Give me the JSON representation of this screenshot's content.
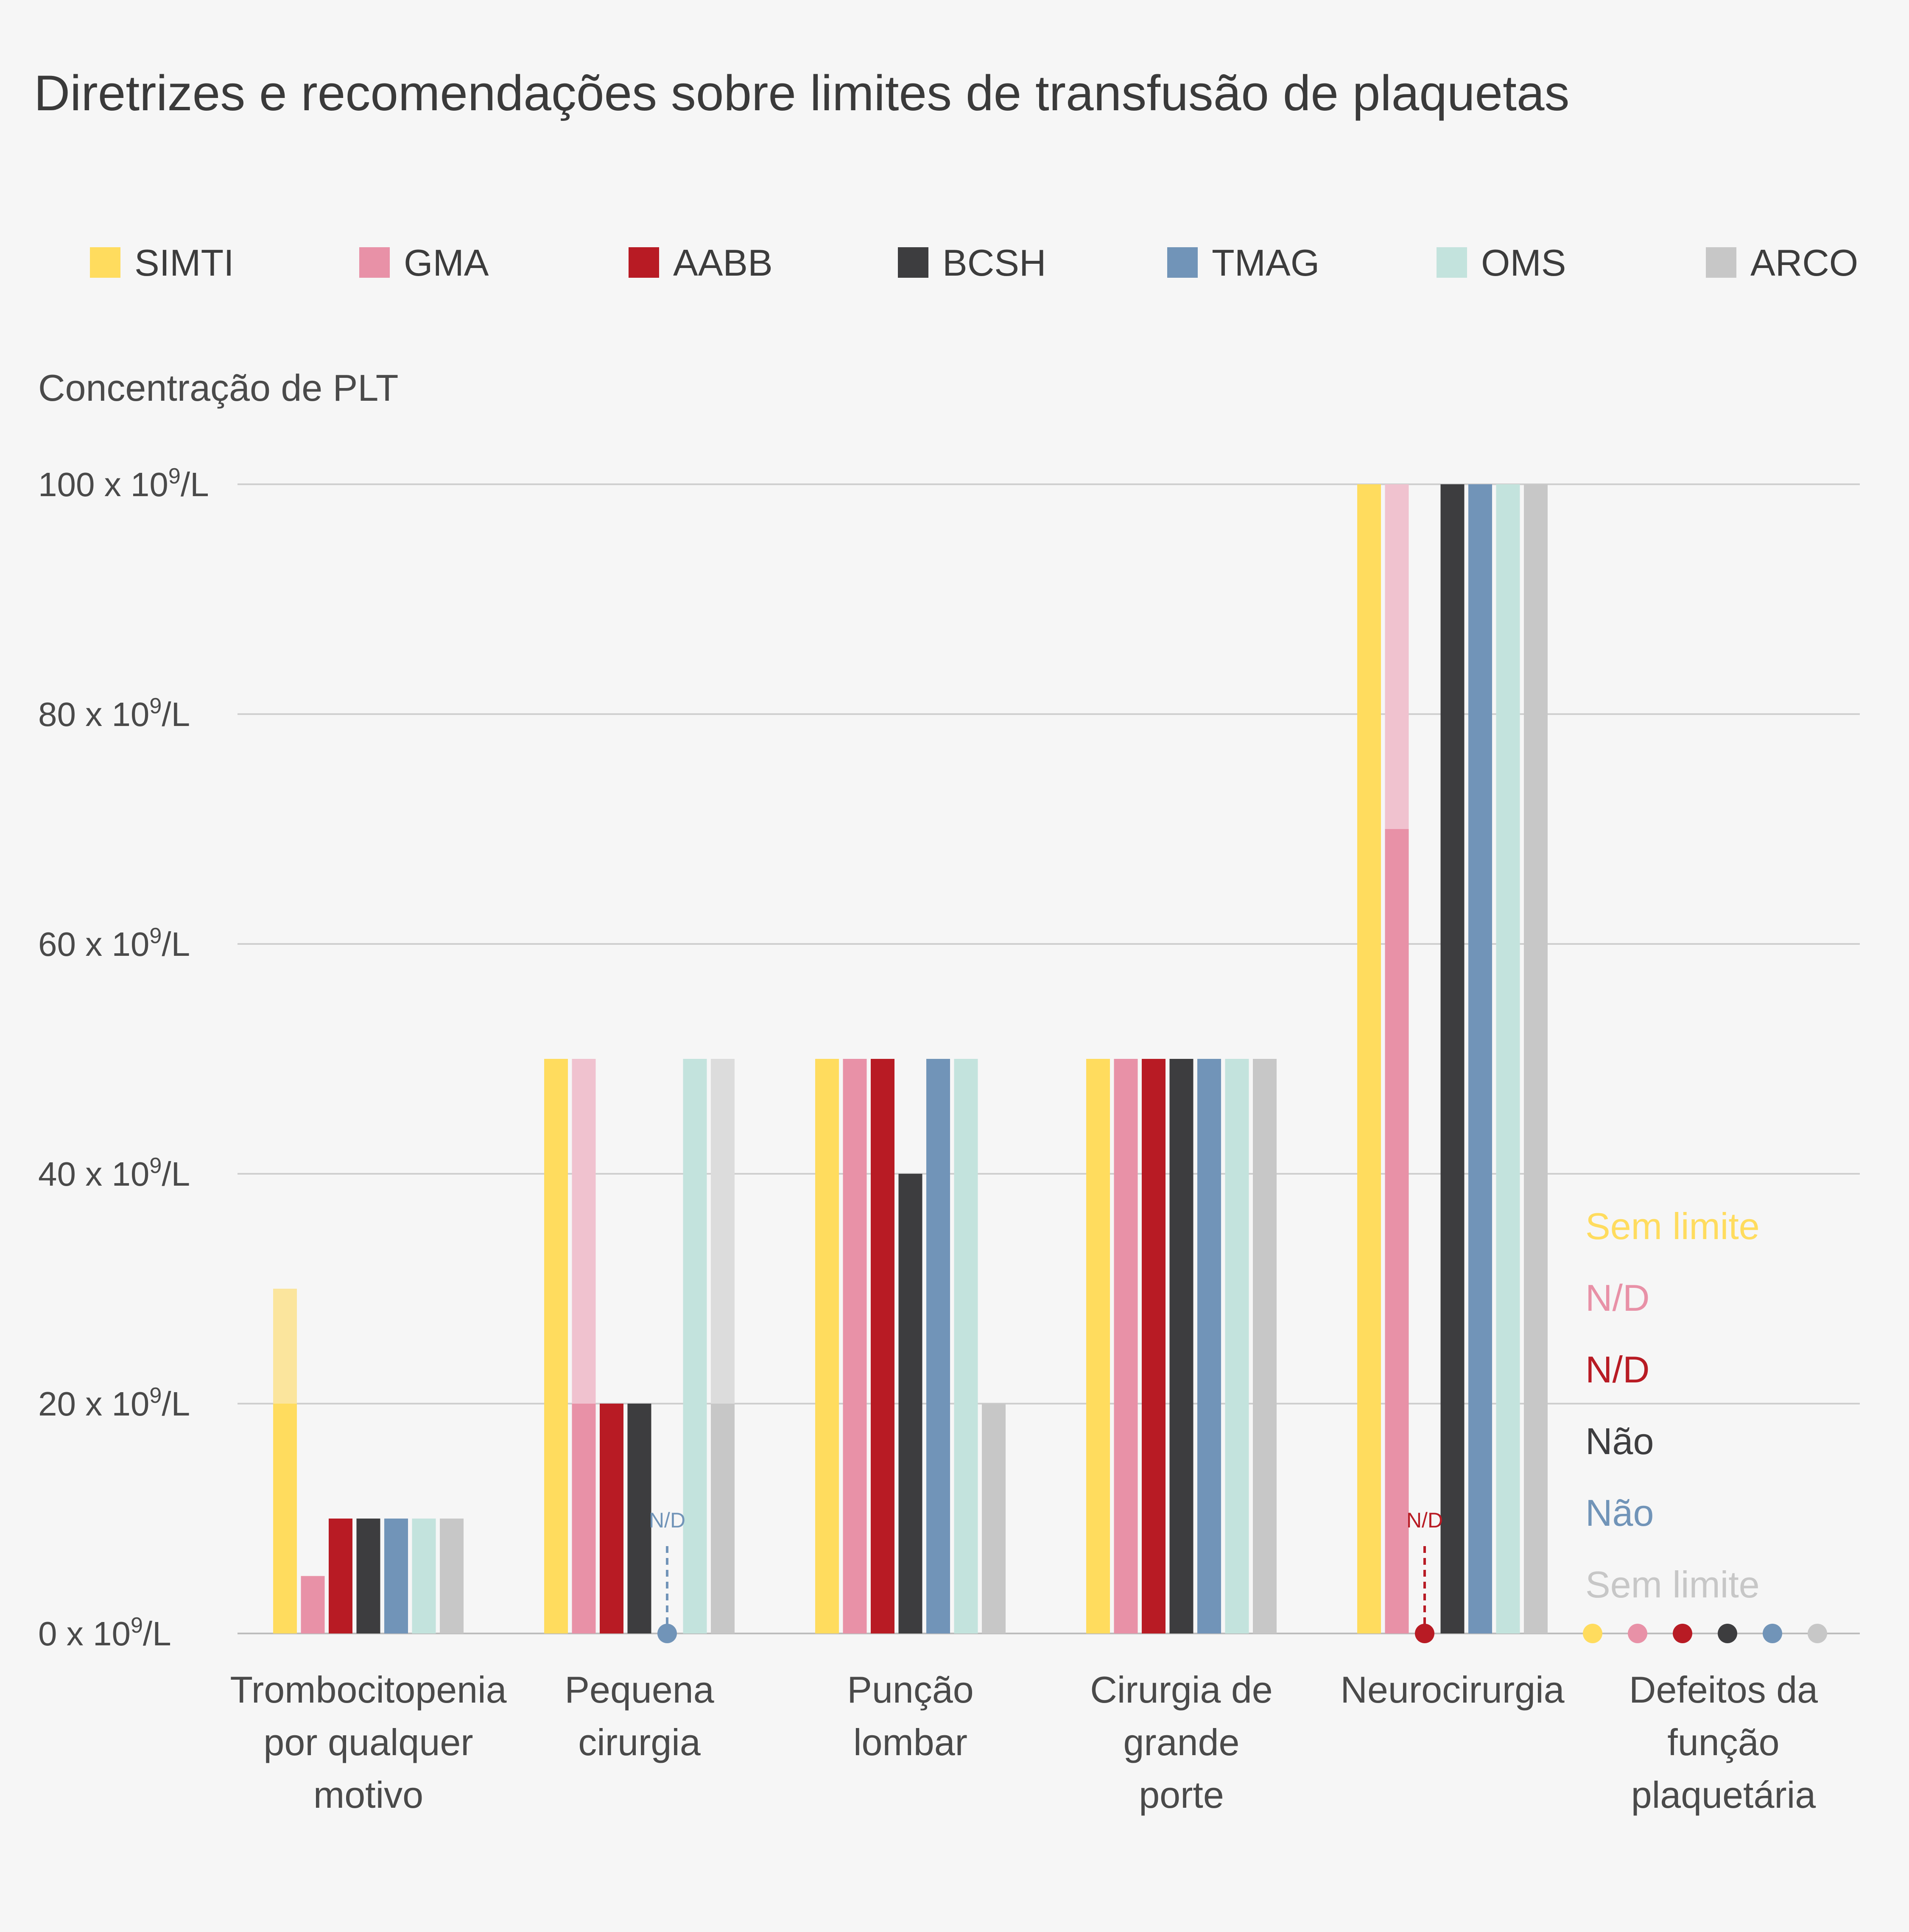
{
  "chart_data": {
    "type": "bar",
    "title": "Diretrizes e recomendações sobre limites de transfusão de plaquetas",
    "ylabel": "Concentração de PLT",
    "y_unit_base": "x 10",
    "y_unit_exp": "9",
    "y_unit_suffix": "/L",
    "ylim": [
      0,
      100
    ],
    "yticks": [
      0,
      20,
      40,
      60,
      80,
      100
    ],
    "grid": true,
    "legend_position": "top",
    "colors": {
      "SIMTI": "#ffdc5e",
      "GMA": "#e891a7",
      "AABB": "#b81b24",
      "BCSH": "#3d3d3f",
      "TMAG": "#7194b8",
      "OMS": "#c3e3dd",
      "ARCO": "#c7c7c7"
    },
    "light_colors": {
      "SIMTI": "#fbe59d",
      "GMA": "#f0c2cf",
      "OMS": "#c3e3dd",
      "ARCO": "#dcdcdc"
    },
    "categories": [
      "Trombocitopenia por qualquer motivo",
      "Pequena cirurgia",
      "Punção lombar",
      "Cirurgia de grande porte",
      "Neurocirurgia",
      "Defeitos da função plaquetária"
    ],
    "category_lines": [
      [
        "Trombocitopenia",
        "por qualquer",
        "motivo"
      ],
      [
        "Pequena",
        "cirurgia"
      ],
      [
        "Punção",
        "lombar"
      ],
      [
        "Cirurgia de",
        "grande",
        "porte"
      ],
      [
        "Neurocirurgia"
      ],
      [
        "Defeitos da",
        "função",
        "plaquetária"
      ]
    ],
    "series": [
      {
        "name": "SIMTI",
        "values": [
          20,
          50,
          50,
          50,
          100,
          null
        ],
        "upper": [
          30,
          null,
          null,
          null,
          null,
          null
        ]
      },
      {
        "name": "GMA",
        "values": [
          5,
          20,
          50,
          50,
          70,
          null
        ],
        "upper": [
          null,
          50,
          null,
          null,
          100,
          null
        ]
      },
      {
        "name": "AABB",
        "values": [
          10,
          20,
          50,
          50,
          null,
          null
        ],
        "upper": [
          null,
          null,
          null,
          null,
          null,
          null
        ]
      },
      {
        "name": "BCSH",
        "values": [
          10,
          20,
          40,
          50,
          100,
          null
        ],
        "upper": [
          null,
          null,
          null,
          null,
          null,
          null
        ]
      },
      {
        "name": "TMAG",
        "values": [
          10,
          null,
          50,
          50,
          100,
          null
        ],
        "upper": [
          null,
          null,
          null,
          null,
          null,
          null
        ]
      },
      {
        "name": "OMS",
        "values": [
          10,
          50,
          50,
          50,
          100,
          null
        ],
        "upper": [
          null,
          null,
          null,
          null,
          null,
          null
        ]
      },
      {
        "name": "ARCO",
        "values": [
          10,
          20,
          20,
          50,
          100,
          null
        ],
        "upper": [
          null,
          50,
          null,
          null,
          null,
          null
        ]
      }
    ],
    "not_available": [
      {
        "series": "TMAG",
        "category": "Pequena cirurgia",
        "label": "N/D"
      },
      {
        "series": "AABB",
        "category": "Neurocirurgia",
        "label": "N/D"
      }
    ],
    "platelet_function_defects": [
      {
        "series": "SIMTI",
        "label": "Sem limite"
      },
      {
        "series": "GMA",
        "label": "N/D"
      },
      {
        "series": "AABB",
        "label": "N/D"
      },
      {
        "series": "BCSH",
        "label": "Não"
      },
      {
        "series": "TMAG",
        "label": "Não"
      },
      {
        "series": "ARCO",
        "label": "Sem limite"
      }
    ],
    "defect_dot_series": [
      "SIMTI",
      "GMA",
      "AABB",
      "BCSH",
      "TMAG",
      "ARCO"
    ]
  }
}
